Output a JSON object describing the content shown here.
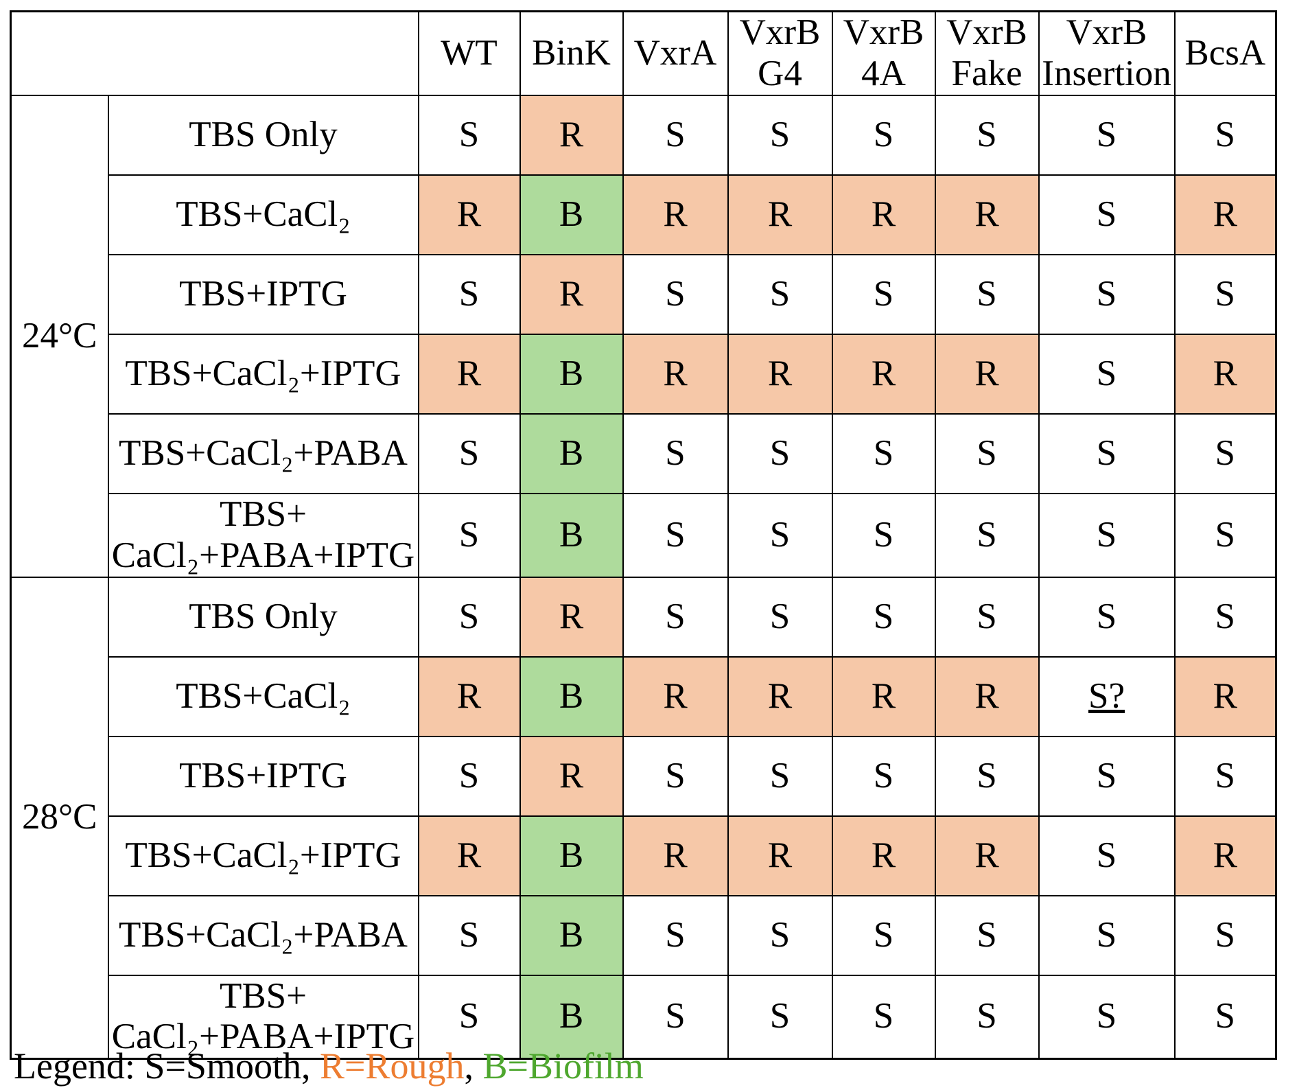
{
  "chart_data": {
    "type": "table",
    "title": "",
    "columns": [
      "WT",
      "BinK",
      "VxrA",
      "VxrB\nG4",
      "VxrB\n4A",
      "VxrB\nFake",
      "VxrB\nInsertion",
      "BcsA"
    ],
    "row_groups": [
      {
        "group_label": "24°C",
        "rows": [
          {
            "label": "TBS Only",
            "values": [
              "S",
              "R",
              "S",
              "S",
              "S",
              "S",
              "S",
              "S"
            ]
          },
          {
            "label": "TBS+CaCl₂",
            "values": [
              "R",
              "B",
              "R",
              "R",
              "R",
              "R",
              "S",
              "R"
            ]
          },
          {
            "label": "TBS+IPTG",
            "values": [
              "S",
              "R",
              "S",
              "S",
              "S",
              "S",
              "S",
              "S"
            ]
          },
          {
            "label": "TBS+CaCl₂+IPTG",
            "values": [
              "R",
              "B",
              "R",
              "R",
              "R",
              "R",
              "S",
              "R"
            ]
          },
          {
            "label": "TBS+CaCl₂+PABA",
            "values": [
              "S",
              "B",
              "S",
              "S",
              "S",
              "S",
              "S",
              "S"
            ]
          },
          {
            "label": "TBS+\nCaCl₂+PABA+IPTG",
            "values": [
              "S",
              "B",
              "S",
              "S",
              "S",
              "S",
              "S",
              "S"
            ]
          }
        ]
      },
      {
        "group_label": "28°C",
        "rows": [
          {
            "label": "TBS Only",
            "values": [
              "S",
              "R",
              "S",
              "S",
              "S",
              "S",
              "S",
              "S"
            ]
          },
          {
            "label": "TBS+CaCl₂",
            "values": [
              "R",
              "B",
              "R",
              "R",
              "R",
              "R",
              "S?",
              "R"
            ]
          },
          {
            "label": "TBS+IPTG",
            "values": [
              "S",
              "R",
              "S",
              "S",
              "S",
              "S",
              "S",
              "S"
            ]
          },
          {
            "label": "TBS+CaCl₂+IPTG",
            "values": [
              "R",
              "B",
              "R",
              "R",
              "R",
              "R",
              "S",
              "R"
            ]
          },
          {
            "label": "TBS+CaCl₂+PABA",
            "values": [
              "S",
              "B",
              "S",
              "S",
              "S",
              "S",
              "S",
              "S"
            ]
          },
          {
            "label": "TBS+\nCaCl₂+PABA+IPTG",
            "values": [
              "S",
              "B",
              "S",
              "S",
              "S",
              "S",
              "S",
              "S"
            ]
          }
        ]
      }
    ],
    "cell_fill_colors": {
      "S": "#FFFFFF",
      "S?": "#FFFFFF",
      "R": "#F6C8A8",
      "B": "#AEDB9C"
    },
    "underline_marker": "?",
    "legend": {
      "parts": [
        {
          "text": "Legend: S=Smooth, ",
          "color": "#000000"
        },
        {
          "text": "R=Rough",
          "color": "#ED7D31"
        },
        {
          "text": ", ",
          "color": "#000000"
        },
        {
          "text": "B=Biofilm",
          "color": "#4EA72E"
        }
      ]
    }
  }
}
